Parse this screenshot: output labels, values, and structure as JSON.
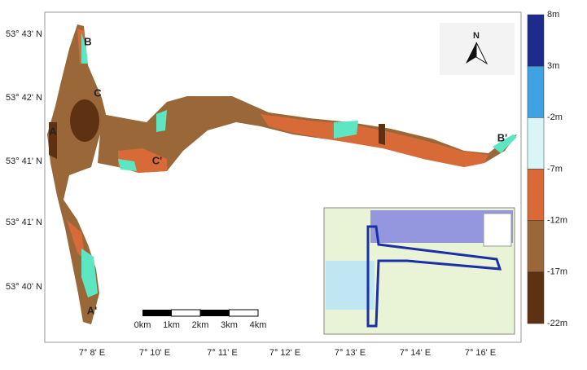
{
  "latitude_labels": [
    "53° 43' N",
    "53° 42' N",
    "53° 41' N",
    "53° 41' N",
    "53° 40' N"
  ],
  "longitude_labels": [
    "7° 8' E",
    "7° 10' E",
    "7° 11' E",
    "7° 12' E",
    "7° 13' E",
    "7° 14' E",
    "7° 16' E"
  ],
  "point_labels": [
    "A",
    "B",
    "C",
    "C'",
    "B'",
    "A'"
  ],
  "scale_bar": [
    "0km",
    "1km",
    "2km",
    "3km",
    "4km"
  ],
  "north_arrow": "N",
  "legend": {
    "labels": [
      "8m",
      "3m",
      "-2m",
      "-7m",
      "-12m",
      "-17m",
      "-22m"
    ],
    "colors": [
      "#1c2b8c",
      "#3fa2e3",
      "#d9f5f7",
      "#d86a38",
      "#9a6738",
      "#5e3112"
    ]
  }
}
